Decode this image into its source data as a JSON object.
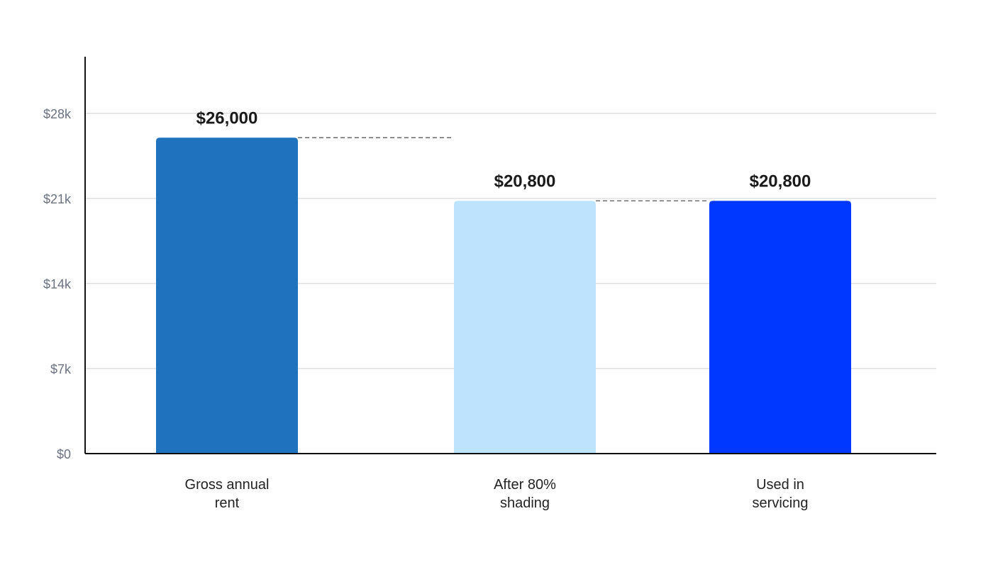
{
  "chart_data": {
    "type": "bar",
    "title": "",
    "xlabel": "",
    "ylabel": "",
    "ylim": [
      0,
      28000
    ],
    "grid": true,
    "y_ticks": [
      {
        "value": 0,
        "label": "$0"
      },
      {
        "value": 7000,
        "label": "$7k"
      },
      {
        "value": 14000,
        "label": "$14k"
      },
      {
        "value": 21000,
        "label": "$21k"
      },
      {
        "value": 28000,
        "label": "$28k"
      }
    ],
    "categories": [
      [
        "Gross annual",
        "rent"
      ],
      [
        "After 80%",
        "shading"
      ],
      [
        "Used in",
        "servicing"
      ]
    ],
    "values": [
      26000,
      20800,
      20800
    ],
    "value_labels": [
      "$26,000",
      "$20,800",
      "$20,800"
    ],
    "colors": [
      "#1f72bd",
      "#bee3fc",
      "#0038ff"
    ],
    "connectors": [
      {
        "from": 0,
        "to": 1
      },
      {
        "from": 1,
        "to": 2
      }
    ]
  }
}
